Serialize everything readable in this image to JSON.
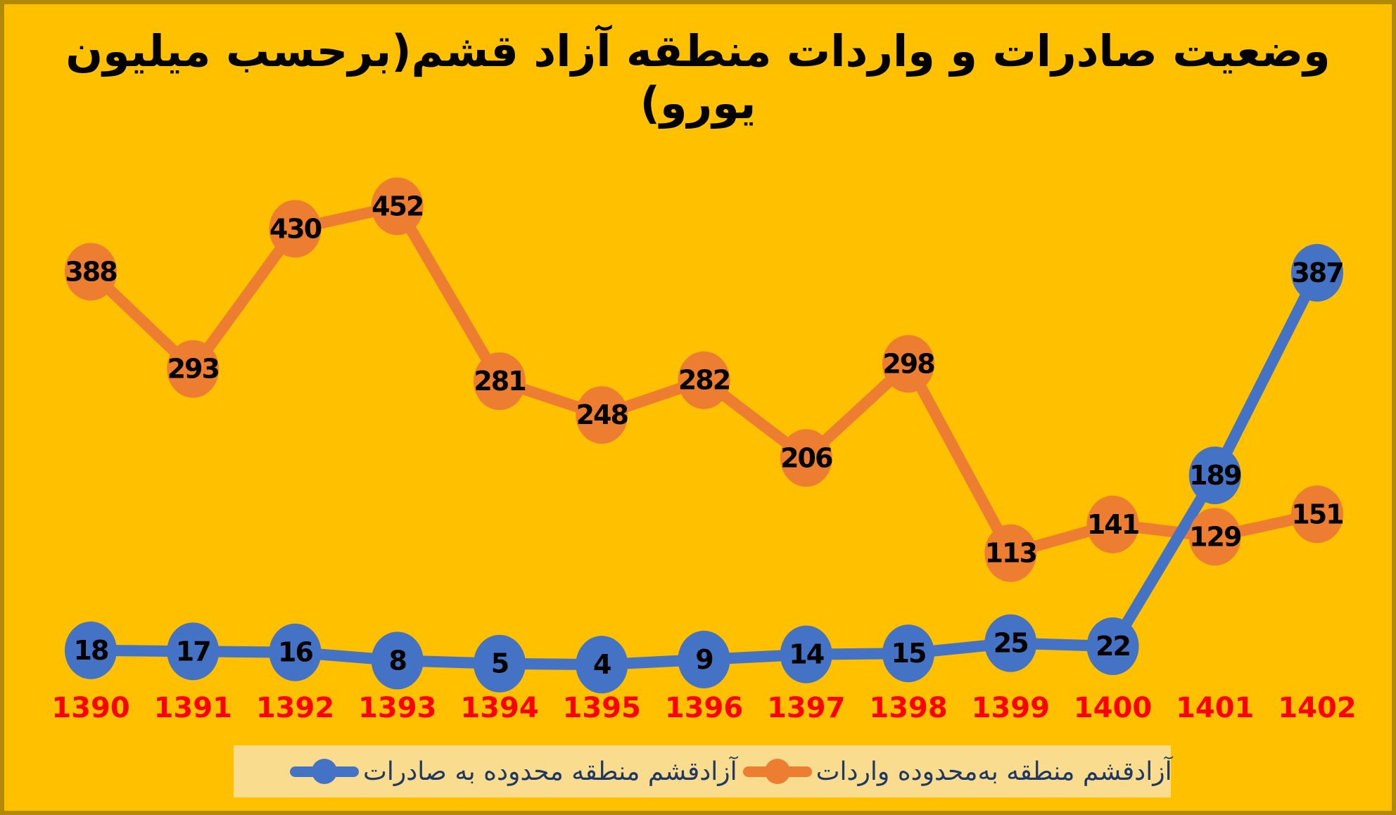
{
  "title": "وضعیت صادرات و واردات منطقه آزاد قشم(برحسب میلیون یورو)",
  "colors": {
    "background": "#FFC000",
    "frame_border": "#B28904",
    "legend_band": "#F9DC8E",
    "legend_text": "#1F3864",
    "year_label": "#FF0000",
    "value_label": "#000000",
    "exports_series": "#4472C4",
    "imports_series": "#ED7D31"
  },
  "legend": {
    "marker_icon": "line-with-circle-marker",
    "position": "bottom"
  },
  "chart_data": {
    "type": "line",
    "title": "وضعیت صادرات و واردات منطقه آزاد قشم(برحسب میلیون یورو)",
    "xlabel": "",
    "ylabel": "",
    "grid": false,
    "data_labels": "inside-markers",
    "legend_position": "bottom",
    "categories": [
      "1390",
      "1391",
      "1392",
      "1393",
      "1394",
      "1395",
      "1396",
      "1397",
      "1398",
      "1399",
      "1400",
      "1401",
      "1402"
    ],
    "series": [
      {
        "name": "صادرات به محدوده منطقه آزادقشم",
        "color": "#4472C4",
        "values": [
          18,
          17,
          16,
          8,
          5,
          4,
          9,
          14,
          15,
          25,
          22,
          189,
          387
        ]
      },
      {
        "name": "واردات به‌محدوده منطقه آزادقشم",
        "color": "#ED7D31",
        "values": [
          388,
          293,
          430,
          452,
          281,
          248,
          282,
          206,
          298,
          113,
          141,
          129,
          151
        ]
      }
    ]
  }
}
